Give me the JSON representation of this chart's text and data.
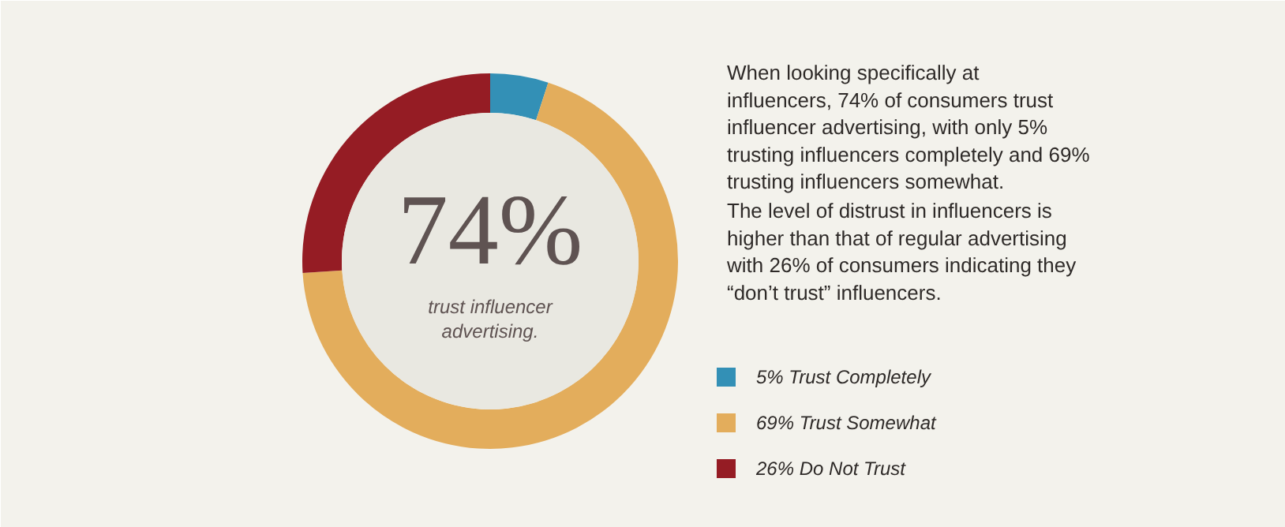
{
  "chart_data": {
    "type": "donut",
    "categories": [
      "Trust Completely",
      "Trust Somewhat",
      "Do Not Trust"
    ],
    "values": [
      5,
      69,
      26
    ],
    "colors": [
      "#3390b6",
      "#e3ad5c",
      "#951c24"
    ],
    "value_labels": [
      "5%",
      "69%",
      "26%"
    ],
    "legend": "right",
    "annotations": [
      "74%",
      "trust influencer advertising.",
      "When looking specifically at influencers, 74% of consumers trust influencer advertising, with only 5% trusting influencers completely and 69% trusting influencers somewhat.",
      "The level of distrust in influencers is higher than that of regular advertising with 26% of consumers indicating they “don’t trust” influencers."
    ]
  }
}
